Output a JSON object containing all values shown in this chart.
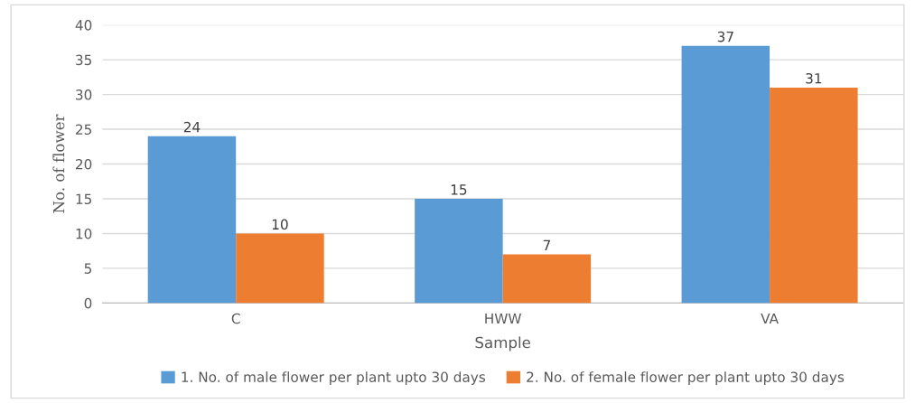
{
  "chart_data": {
    "type": "bar",
    "xlabel": "Sample",
    "ylabel": "No. of flower",
    "categories": [
      "C",
      "HWW",
      "VA"
    ],
    "series": [
      {
        "name": "1. No. of male flower per plant upto 30 days",
        "color": "#5b9bd5",
        "values": [
          24,
          15,
          37
        ]
      },
      {
        "name": "2. No. of female flower per plant upto 30 days",
        "color": "#ed7d31",
        "values": [
          10,
          7,
          31
        ]
      }
    ],
    "ylim": [
      0,
      40
    ],
    "yticks": [
      0,
      5,
      10,
      15,
      20,
      25,
      30,
      35,
      40
    ],
    "grid": "y",
    "legend": "bottom",
    "data_labels": true
  }
}
